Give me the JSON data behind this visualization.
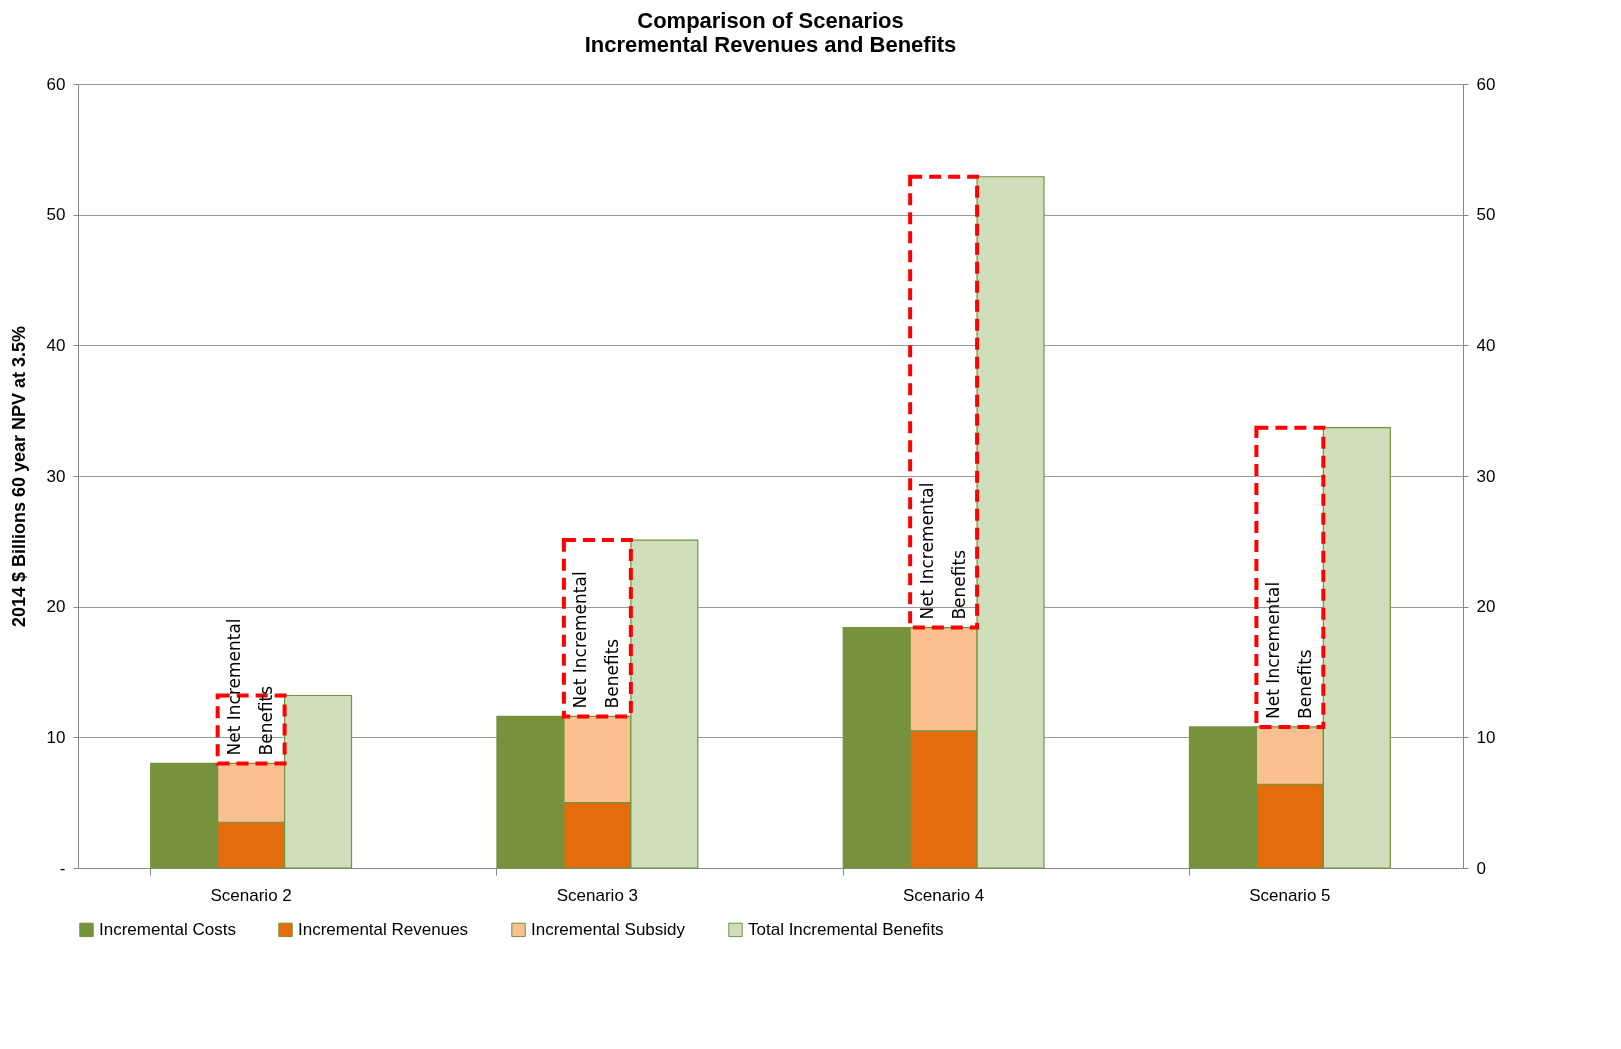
{
  "chart_data": {
    "type": "bar",
    "title": "Comparison of Scenarios\nIncremental Revenues and Benefits",
    "ylabel": "2014 $ Billions 60 year NPV at 3.5%",
    "categories": [
      "Scenario 2",
      "Scenario 3",
      "Scenario  4",
      "Scenario  5"
    ],
    "series": [
      {
        "name": "Incremental Costs",
        "color": "#76923c",
        "values": [
          8.0,
          11.6,
          18.4,
          10.8
        ]
      },
      {
        "name": "Incremental Revenues",
        "color": "#e46c0a",
        "base": [
          0,
          0,
          0,
          0
        ],
        "values": [
          3.5,
          5.0,
          10.5,
          6.4
        ]
      },
      {
        "name": "Incremental Subsidy",
        "color": "#fac090",
        "base": [
          3.5,
          5.0,
          10.5,
          6.4
        ],
        "values": [
          4.5,
          6.6,
          7.9,
          4.4
        ]
      },
      {
        "name": "Net Incremental Benefits",
        "color": "#ff0000",
        "line_style": "dashed",
        "base": [
          8.0,
          11.6,
          18.4,
          10.8
        ],
        "values": [
          5.2,
          13.5,
          34.5,
          22.9
        ]
      },
      {
        "name": "Total Incremental Benefits",
        "color": "#d0dfbb",
        "values": [
          13.2,
          25.1,
          52.9,
          33.7
        ]
      }
    ],
    "ylim": [
      0,
      60
    ],
    "yticks": [
      {
        "value": 0,
        "label": "-"
      },
      10,
      20,
      30,
      40,
      50,
      60
    ],
    "y2lim": [
      0,
      60
    ],
    "y2ticks": [
      0,
      10,
      20,
      30,
      40,
      50,
      60
    ],
    "grid": "y",
    "legend": "bottom"
  }
}
